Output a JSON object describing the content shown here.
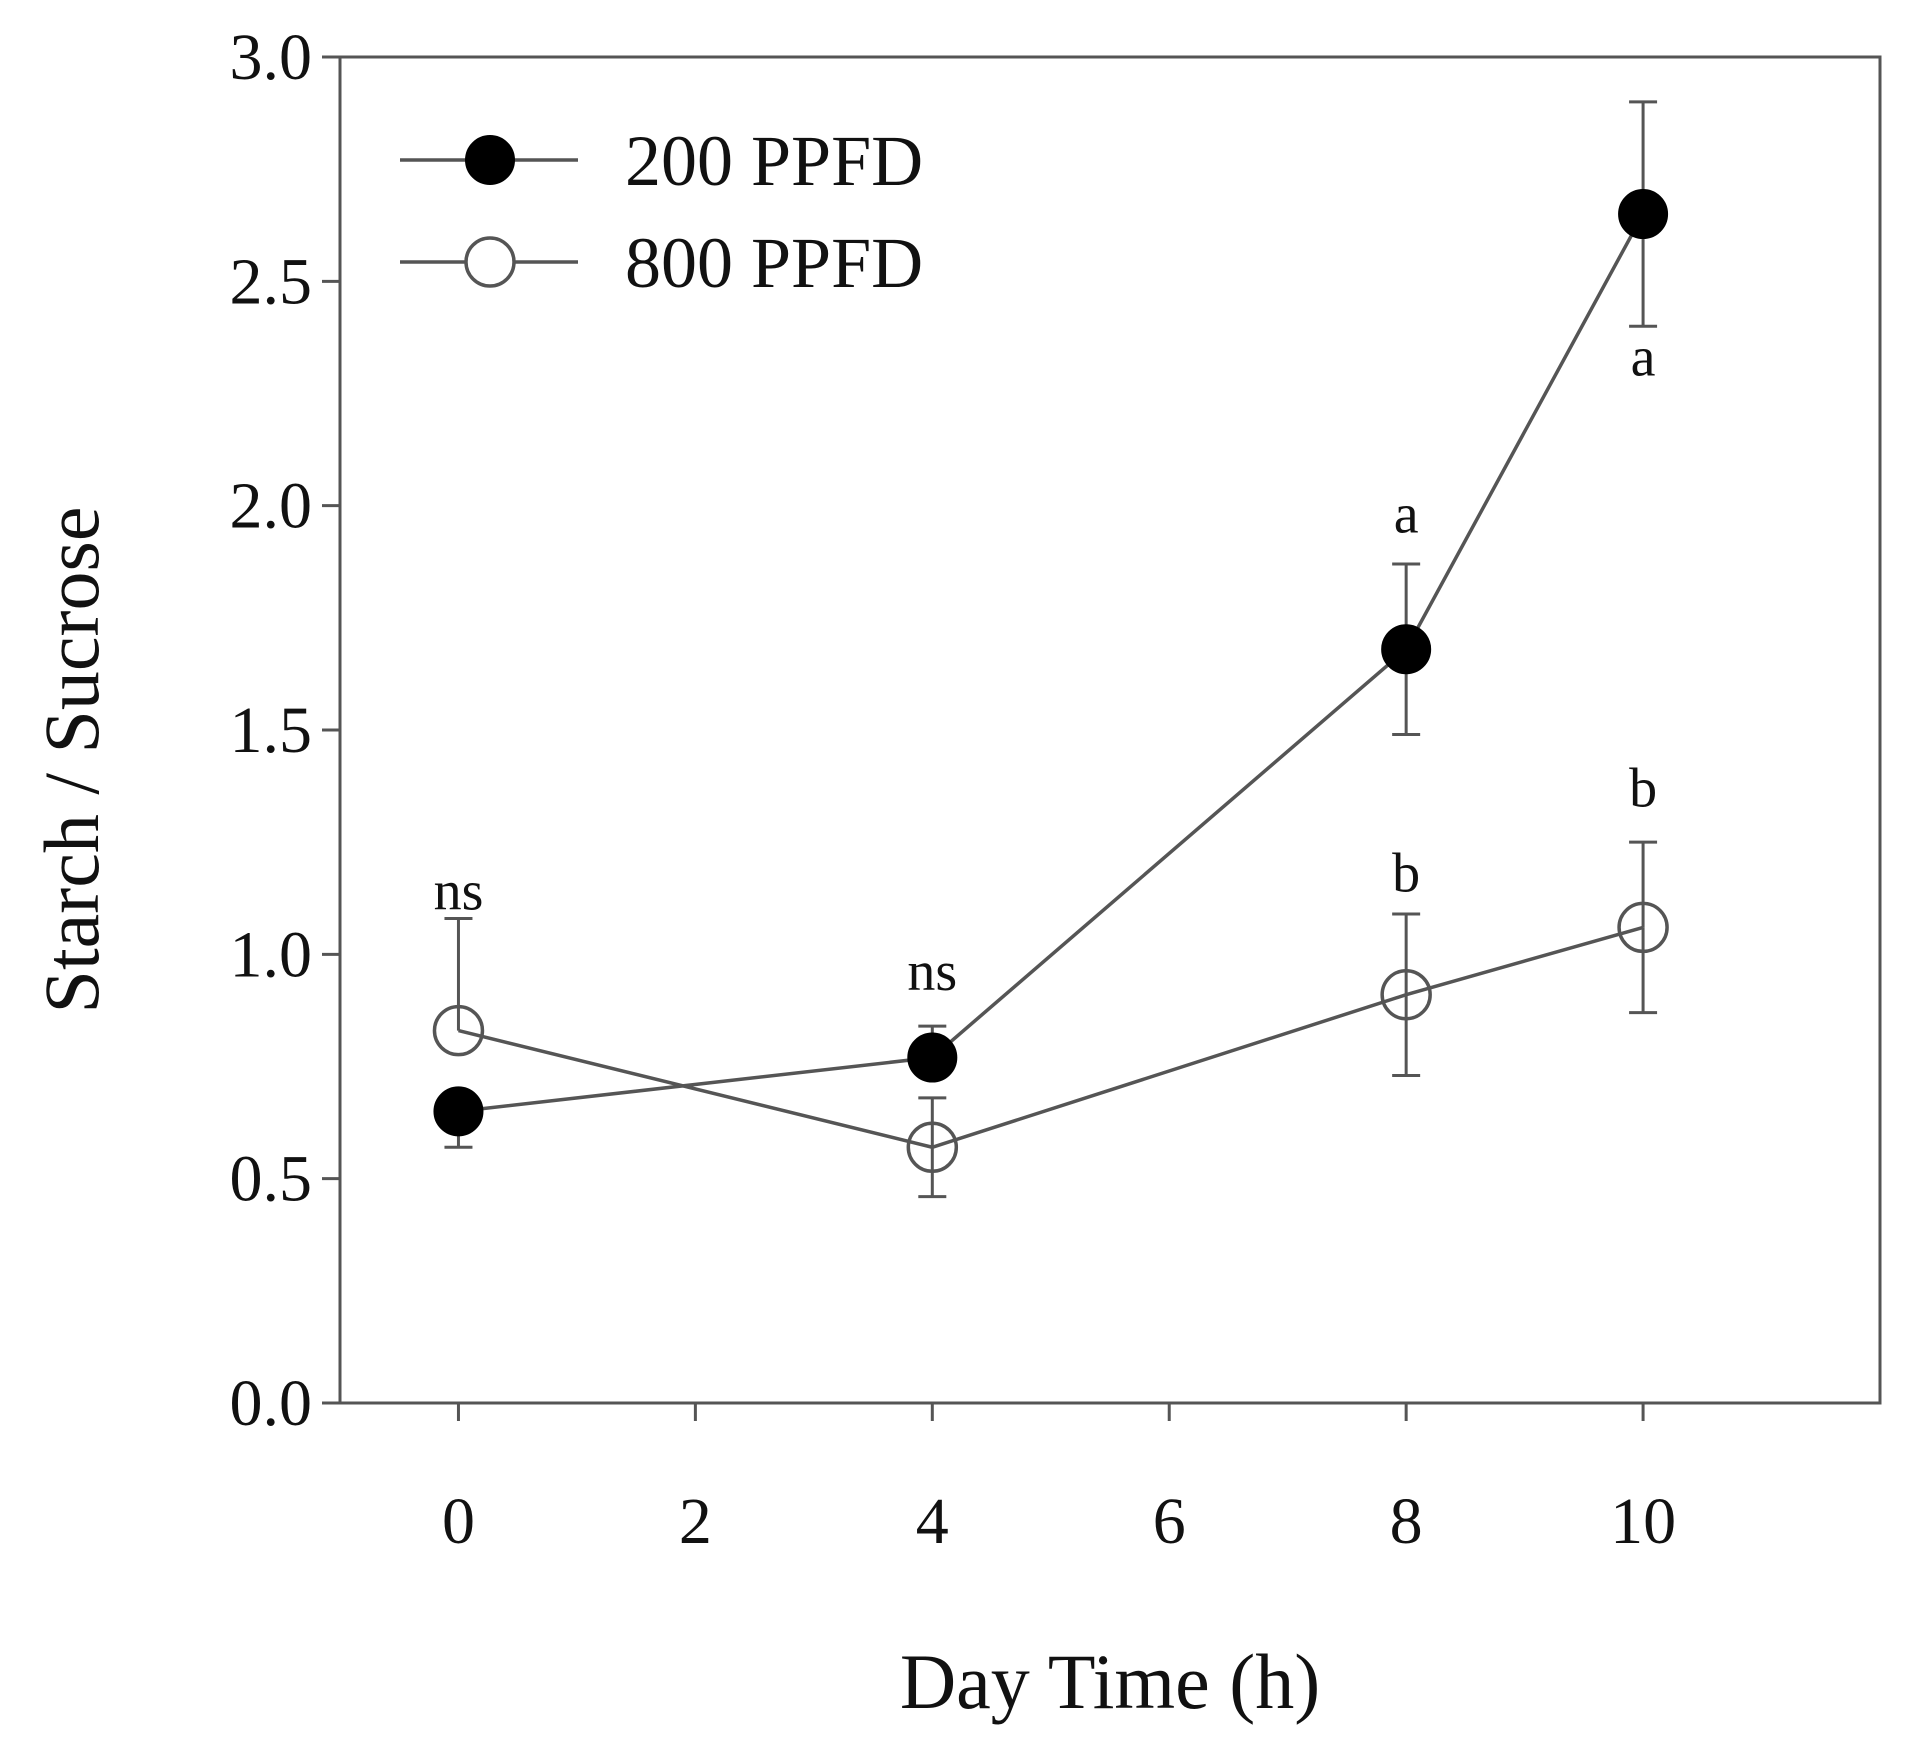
{
  "chart_data": {
    "type": "line",
    "title": "",
    "xlabel": "Day Time (h)",
    "ylabel": "Starch / Sucrose",
    "xlim": [
      -1,
      12
    ],
    "ylim": [
      0,
      3.0
    ],
    "xticks": [
      0,
      2,
      4,
      6,
      8,
      10
    ],
    "xtick_labels": [
      "0",
      "2",
      "4",
      "6",
      "8",
      "10"
    ],
    "yticks": [
      0,
      0.5,
      1.0,
      1.5,
      2.0,
      2.5,
      3.0
    ],
    "ytick_labels": [
      "0.0",
      "0.5",
      "1.0",
      "1.5",
      "2.0",
      "2.5",
      "3.0"
    ],
    "grid": false,
    "legend_position": "top-left",
    "series": [
      {
        "name": "200 PPFD",
        "marker": "filled-circle",
        "color": "#000000",
        "line_color": "#555555",
        "x": [
          0,
          4,
          8,
          10
        ],
        "y": [
          0.65,
          0.77,
          1.68,
          2.65
        ],
        "error": [
          0.08,
          0.07,
          0.19,
          0.25
        ],
        "error_direction": [
          "down",
          "up",
          "both",
          "both"
        ]
      },
      {
        "name": "800 PPFD",
        "marker": "open-circle",
        "color": "#555555",
        "line_color": "#555555",
        "x": [
          0,
          4,
          8,
          10
        ],
        "y": [
          0.83,
          0.57,
          0.91,
          1.06
        ],
        "error": [
          0.25,
          0.11,
          0.18,
          0.19
        ],
        "error_direction": [
          "up",
          "both",
          "both",
          "both"
        ]
      }
    ],
    "annotations": [
      {
        "text": "ns",
        "x": 0,
        "y": 1.1
      },
      {
        "text": "ns",
        "x": 4,
        "y": 0.92
      },
      {
        "text": "a",
        "x": 8,
        "y": 1.94
      },
      {
        "text": "b",
        "x": 8,
        "y": 1.14
      },
      {
        "text": "a",
        "x": 10,
        "y": 2.29
      },
      {
        "text": "b",
        "x": 10,
        "y": 1.33
      }
    ]
  }
}
